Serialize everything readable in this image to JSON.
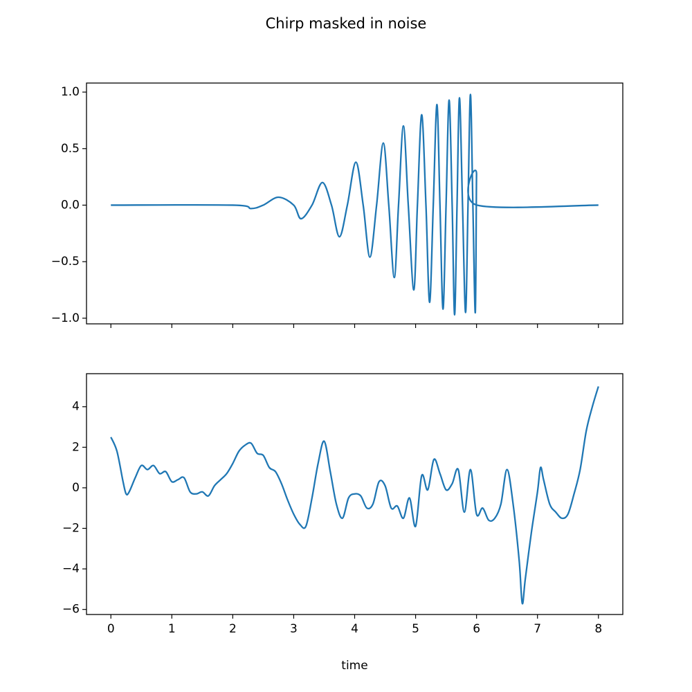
{
  "title": "Chirp masked in noise",
  "chart_data": [
    {
      "type": "line",
      "x": [
        0,
        2,
        2.3,
        2.5,
        2.75,
        3.0,
        3.12,
        3.3,
        3.47,
        3.62,
        3.75,
        3.88,
        4.02,
        4.14,
        4.25,
        4.36,
        4.47,
        4.56,
        4.65,
        4.72,
        4.8,
        4.88,
        4.97,
        5.03,
        5.1,
        5.17,
        5.23,
        5.29,
        5.35,
        5.4,
        5.45,
        5.5,
        5.55,
        5.6,
        5.64,
        5.68,
        5.72,
        5.77,
        5.82,
        5.86,
        5.9,
        5.94,
        5.98,
        6.0,
        6.01,
        8
      ],
      "series": [
        {
          "color": "#1f77b4",
          "values": [
            0,
            0,
            -0.03,
            0,
            0.07,
            0,
            -0.12,
            0,
            0.2,
            0,
            -0.28,
            0,
            0.38,
            0,
            -0.46,
            0,
            0.55,
            0,
            -0.64,
            0,
            0.7,
            0,
            -0.75,
            0,
            0.8,
            0,
            -0.86,
            0,
            0.89,
            0,
            -0.92,
            0,
            0.93,
            0,
            -0.97,
            0,
            0.95,
            0,
            -0.95,
            0,
            0.98,
            0,
            -0.95,
            0.27,
            0,
            0
          ]
        }
      ],
      "xlim": [
        -0.4,
        8.4
      ],
      "ylim": [
        -1.05,
        1.08
      ],
      "yticks": [
        {
          "value": -1,
          "label": "−1.0"
        },
        {
          "value": -0.5,
          "label": "−0.5"
        },
        {
          "value": 0,
          "label": "0.0"
        },
        {
          "value": 0.5,
          "label": "0.5"
        },
        {
          "value": 1,
          "label": "1.0"
        }
      ]
    },
    {
      "type": "line",
      "xlabel": "time",
      "x": [
        0,
        0.1,
        0.2,
        0.25,
        0.3,
        0.4,
        0.5,
        0.6,
        0.7,
        0.8,
        0.9,
        1.0,
        1.1,
        1.2,
        1.3,
        1.4,
        1.5,
        1.6,
        1.7,
        1.8,
        1.9,
        2.0,
        2.1,
        2.2,
        2.3,
        2.4,
        2.5,
        2.6,
        2.7,
        2.8,
        2.9,
        3.0,
        3.1,
        3.2,
        3.3,
        3.4,
        3.5,
        3.6,
        3.7,
        3.8,
        3.9,
        4.0,
        4.1,
        4.2,
        4.3,
        4.4,
        4.5,
        4.6,
        4.7,
        4.8,
        4.9,
        5.0,
        5.1,
        5.2,
        5.3,
        5.4,
        5.5,
        5.6,
        5.7,
        5.8,
        5.9,
        6.0,
        6.1,
        6.2,
        6.3,
        6.4,
        6.5,
        6.6,
        6.7,
        6.75,
        6.8,
        6.9,
        7.0,
        7.05,
        7.1,
        7.2,
        7.3,
        7.4,
        7.5,
        7.6,
        7.7,
        7.8,
        7.9,
        8.0
      ],
      "series": [
        {
          "color": "#1f77b4",
          "values": [
            2.5,
            1.8,
            0.3,
            -0.3,
            -0.2,
            0.5,
            1.1,
            0.9,
            1.1,
            0.7,
            0.8,
            0.3,
            0.4,
            0.5,
            -0.2,
            -0.3,
            -0.2,
            -0.4,
            0.1,
            0.4,
            0.7,
            1.2,
            1.8,
            2.1,
            2.2,
            1.7,
            1.6,
            1.0,
            0.8,
            0.2,
            -0.6,
            -1.3,
            -1.8,
            -1.9,
            -0.5,
            1.2,
            2.3,
            0.8,
            -0.8,
            -1.5,
            -0.5,
            -0.3,
            -0.4,
            -1.0,
            -0.8,
            0.3,
            0.1,
            -1.0,
            -0.9,
            -1.5,
            -0.5,
            -1.9,
            0.6,
            -0.1,
            1.4,
            0.7,
            -0.1,
            0.2,
            0.9,
            -1.2,
            0.9,
            -1.3,
            -1.0,
            -1.6,
            -1.5,
            -0.8,
            0.9,
            -0.8,
            -3.6,
            -5.7,
            -4.5,
            -2.2,
            -0.2,
            1.0,
            0.4,
            -0.8,
            -1.2,
            -1.5,
            -1.3,
            -0.3,
            0.9,
            2.8,
            4.0,
            5.0
          ]
        }
      ],
      "xlim": [
        -0.4,
        8.4
      ],
      "ylim": [
        -6.25,
        5.63
      ],
      "xticks": [
        0,
        1,
        2,
        3,
        4,
        5,
        6,
        7,
        8
      ],
      "yticks": [
        {
          "value": -6,
          "label": "−6"
        },
        {
          "value": -4,
          "label": "−4"
        },
        {
          "value": -2,
          "label": "−2"
        },
        0,
        2,
        4
      ]
    }
  ]
}
